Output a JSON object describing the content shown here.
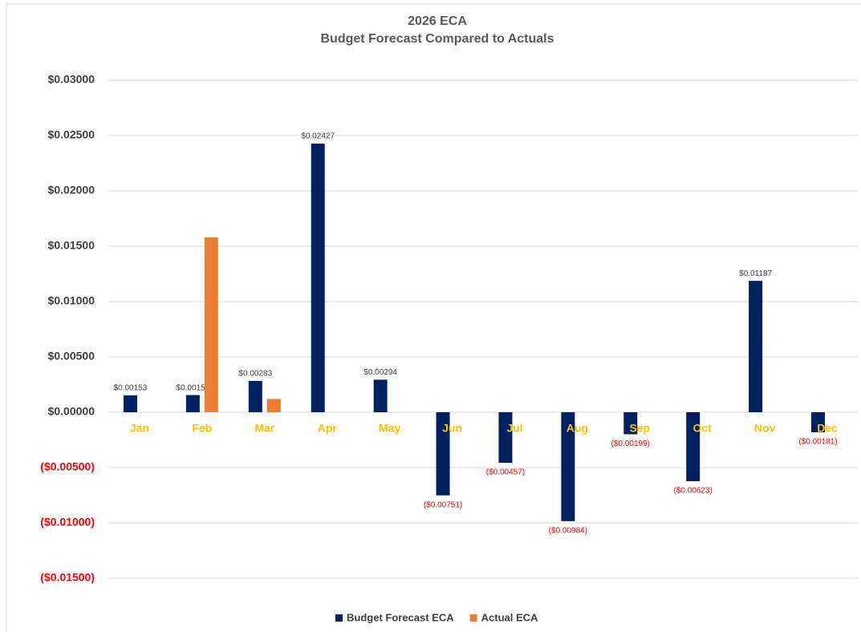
{
  "chart_data": {
    "type": "bar",
    "title": "2026 ECA",
    "subtitle": "Budget Forecast Compared to Actuals",
    "categories": [
      "Jan",
      "Feb",
      "Mar",
      "Apr",
      "May",
      "Jun",
      "Jul",
      "Aug",
      "Sep",
      "Oct",
      "Nov",
      "Dec"
    ],
    "series": [
      {
        "name": "Budget Forecast ECA",
        "color": "#002060",
        "values": [
          0.00153,
          0.00155,
          0.00283,
          0.02427,
          0.00294,
          -0.00751,
          -0.00457,
          -0.00984,
          -0.00199,
          -0.00623,
          0.01187,
          -0.00181
        ],
        "value_labels": [
          "$0.00153",
          "$0.00155",
          "$0.00283",
          "$0.02427",
          "$0.00294",
          "($0.00751)",
          "($0.00457)",
          "($0.00984)",
          "($0.00199)",
          "($0.00623)",
          "$0.01187",
          "($0.00181)"
        ]
      },
      {
        "name": "Actual ECA",
        "color": "#ed7d31",
        "values": [
          null,
          0.0158,
          0.0012,
          null,
          null,
          null,
          null,
          null,
          null,
          null,
          null,
          null
        ]
      }
    ],
    "ylim": [
      -0.015,
      0.03
    ],
    "yticks": [
      {
        "value": -0.015,
        "label": "($0.01500)"
      },
      {
        "value": -0.01,
        "label": "($0.01000)"
      },
      {
        "value": -0.005,
        "label": "($0.00500)"
      },
      {
        "value": 0,
        "label": "$0.00000"
      },
      {
        "value": 0.005,
        "label": "$0.00500"
      },
      {
        "value": 0.01,
        "label": "$0.01000"
      },
      {
        "value": 0.015,
        "label": "$0.01500"
      },
      {
        "value": 0.02,
        "label": "$0.02000"
      },
      {
        "value": 0.025,
        "label": "$0.02500"
      },
      {
        "value": 0.03,
        "label": "$0.03000"
      }
    ],
    "grid": true,
    "legend": "bottom"
  }
}
